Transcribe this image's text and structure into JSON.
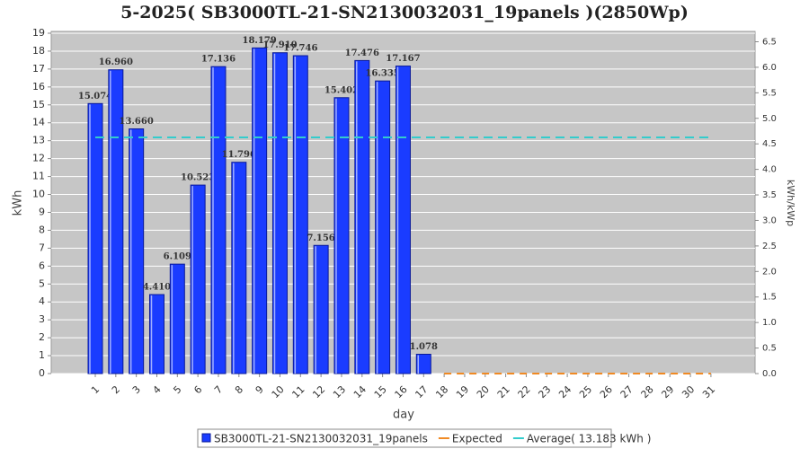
{
  "chart_data": {
    "type": "bar",
    "title": "5-2025( SB3000TL-21-SN2130032031_19panels )(2850Wp)",
    "xlabel": "day",
    "ylabel": "kWh",
    "y2label": "kWh/kWp",
    "categories": [
      "1",
      "2",
      "3",
      "4",
      "5",
      "6",
      "7",
      "8",
      "9",
      "10",
      "11",
      "12",
      "13",
      "14",
      "15",
      "16",
      "17",
      "18",
      "19",
      "20",
      "21",
      "22",
      "23",
      "24",
      "25",
      "26",
      "27",
      "28",
      "29",
      "30",
      "31"
    ],
    "ylim": [
      0,
      19
    ],
    "yticks": [
      0,
      1,
      2,
      3,
      4,
      5,
      6,
      7,
      8,
      9,
      10,
      11,
      12,
      13,
      14,
      15,
      16,
      17,
      18,
      19
    ],
    "y2lim": [
      0,
      6.667
    ],
    "y2ticks": [
      {
        "value": 0,
        "label": "0.0"
      },
      0.5,
      {
        "value": 1,
        "label": "1.0"
      },
      1.5,
      {
        "value": 2,
        "label": "2.0"
      },
      2.5,
      {
        "value": 3,
        "label": "3.0"
      },
      3.5,
      {
        "value": 4,
        "label": "4.0"
      },
      4.5,
      {
        "value": 5,
        "label": "5.0"
      },
      5.5,
      {
        "value": 6,
        "label": "6.0"
      },
      6.5
    ],
    "grid": true,
    "series": [
      {
        "name": "SB3000TL-21-SN2130032031_19panels",
        "color": "#1a3cff",
        "values": [
          15.074,
          16.96,
          13.66,
          4.41,
          6.109,
          10.523,
          17.136,
          11.796,
          18.179,
          17.91,
          17.746,
          7.156,
          15.402,
          17.476,
          16.335,
          17.167,
          1.078,
          null,
          null,
          null,
          null,
          null,
          null,
          null,
          null,
          null,
          null,
          null,
          null,
          null,
          null
        ],
        "value_labels": [
          "15.074",
          "16.960",
          "13.660",
          "4.410",
          "6.109",
          "10.523",
          "17.136",
          "11.796",
          "18.179",
          "17.910",
          "17.746",
          "7.156",
          "15.402",
          "17.476",
          "16.335",
          "17.167",
          "1.078",
          null,
          null,
          null,
          null,
          null,
          null,
          null,
          null,
          null,
          null,
          null,
          null,
          null,
          null
        ]
      },
      {
        "name": "Expected",
        "color": "#f08a24",
        "values": [
          null,
          null,
          null,
          null,
          null,
          null,
          null,
          null,
          null,
          null,
          null,
          null,
          null,
          null,
          null,
          null,
          null,
          0,
          0,
          0,
          0,
          0,
          0,
          0,
          0,
          0,
          0,
          0,
          0,
          0,
          0
        ]
      },
      {
        "name": "Average( 13.183 kWh )",
        "color": "#33cccc",
        "value": 13.183
      }
    ]
  }
}
